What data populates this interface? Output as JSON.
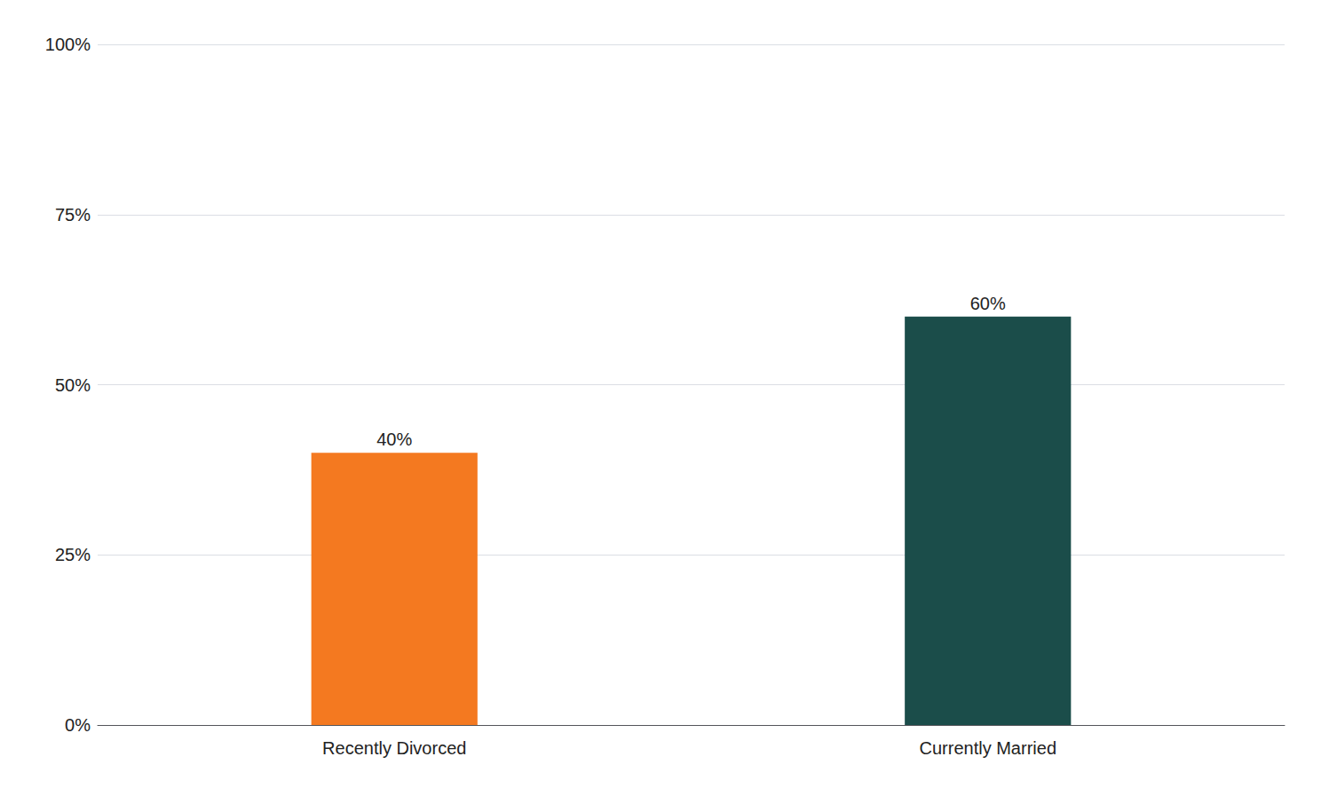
{
  "chart_data": {
    "type": "bar",
    "categories": [
      "Recently Divorced",
      "Currently Married"
    ],
    "values": [
      0.4,
      0.6
    ],
    "value_labels": [
      "40%",
      "60%"
    ],
    "colors": [
      "#F47920",
      "#1B4D4A"
    ],
    "ylim": [
      0,
      1.0
    ],
    "yticks": [
      {
        "value": 0,
        "label": "0%"
      },
      {
        "value": 0.25,
        "label": "25%"
      },
      {
        "value": 0.5,
        "label": "50%"
      },
      {
        "value": 0.75,
        "label": "75%"
      },
      {
        "value": 1.0,
        "label": "100%"
      }
    ],
    "grid": true,
    "data_labels": true
  }
}
